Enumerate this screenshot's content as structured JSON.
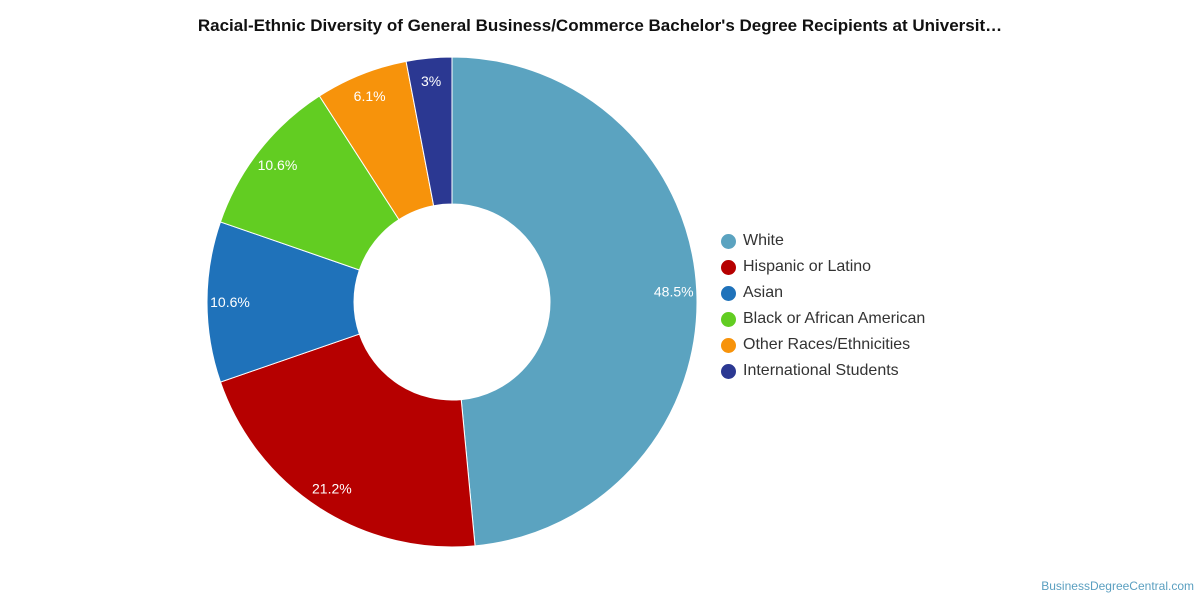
{
  "chart_data": {
    "type": "pie",
    "title": "Racial-Ethnic Diversity of General Business/Commerce Bachelor's Degree Recipients at Universit…",
    "categories": [
      "White",
      "Hispanic or Latino",
      "Asian",
      "Black or African American",
      "Other Races/Ethnicities",
      "International Students"
    ],
    "values": [
      48.5,
      21.2,
      10.6,
      10.6,
      6.1,
      3
    ],
    "data_labels": [
      "48.5%",
      "21.2%",
      "10.6%",
      "10.6%",
      "6.1%",
      "3%"
    ],
    "colors": [
      "#5ba3c0",
      "#b60000",
      "#1f72ba",
      "#62cd22",
      "#f7930b",
      "#2b3892"
    ],
    "legend_position": "right",
    "style": "donut",
    "start": "top, clockwise"
  },
  "watermark": "BusinessDegreeCentral.com"
}
